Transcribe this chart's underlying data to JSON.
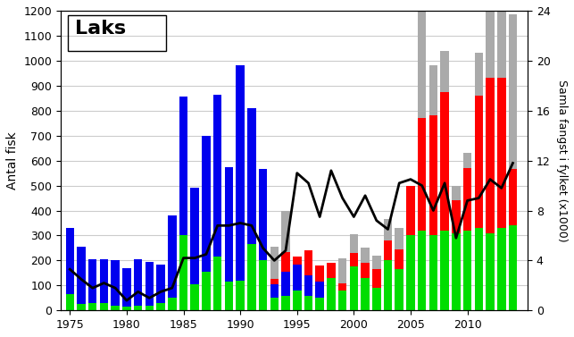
{
  "years": [
    1975,
    1976,
    1977,
    1978,
    1979,
    1980,
    1981,
    1982,
    1983,
    1984,
    1985,
    1986,
    1987,
    1988,
    1989,
    1990,
    1991,
    1992,
    1993,
    1994,
    1995,
    1996,
    1997,
    1998,
    1999,
    2000,
    2001,
    2002,
    2003,
    2004,
    2005,
    2006,
    2007,
    2008,
    2009,
    2010,
    2011,
    2012,
    2013,
    2014
  ],
  "green": [
    65,
    25,
    30,
    30,
    20,
    15,
    20,
    20,
    30,
    50,
    300,
    105,
    155,
    215,
    115,
    120,
    265,
    200,
    50,
    60,
    80,
    60,
    50,
    130,
    80,
    175,
    130,
    90,
    200,
    165,
    300,
    320,
    300,
    320,
    310,
    320,
    330,
    310,
    330,
    340
  ],
  "blue": [
    265,
    230,
    175,
    175,
    180,
    155,
    185,
    175,
    155,
    330,
    555,
    385,
    545,
    650,
    460,
    860,
    545,
    365,
    55,
    95,
    105,
    80,
    65,
    0,
    0,
    0,
    0,
    0,
    0,
    0,
    0,
    0,
    0,
    0,
    0,
    0,
    0,
    0,
    0,
    0
  ],
  "red": [
    0,
    0,
    0,
    0,
    0,
    0,
    0,
    0,
    0,
    0,
    0,
    0,
    0,
    0,
    0,
    0,
    0,
    0,
    20,
    80,
    30,
    100,
    65,
    60,
    30,
    55,
    60,
    75,
    80,
    80,
    200,
    450,
    480,
    555,
    130,
    250,
    530,
    620,
    600,
    225
  ],
  "grey": [
    0,
    0,
    0,
    0,
    0,
    0,
    0,
    0,
    0,
    0,
    0,
    0,
    0,
    0,
    0,
    0,
    0,
    0,
    130,
    165,
    0,
    0,
    0,
    0,
    100,
    75,
    60,
    55,
    85,
    85,
    0,
    430,
    200,
    165,
    60,
    60,
    170,
    290,
    310,
    620
  ],
  "line": [
    3.3,
    2.5,
    1.8,
    2.2,
    1.8,
    0.8,
    1.5,
    1.0,
    1.5,
    1.8,
    4.2,
    4.2,
    4.5,
    6.8,
    6.8,
    7.0,
    6.8,
    5.0,
    4.0,
    4.8,
    11.0,
    10.2,
    7.5,
    11.2,
    9.0,
    7.5,
    9.2,
    7.2,
    6.5,
    10.2,
    10.5,
    10.0,
    8.0,
    10.2,
    5.8,
    8.8,
    9.0,
    10.5,
    9.8,
    11.8
  ],
  "title": "Laks",
  "ylabel_left": "Antal fisk",
  "ylabel_right": "Samla fangst i fylket (x1000)",
  "ylim_left": [
    0,
    1200
  ],
  "ylim_right": [
    0,
    24
  ],
  "yticks_left": [
    0,
    100,
    200,
    300,
    400,
    500,
    600,
    700,
    800,
    900,
    1000,
    1100,
    1200
  ],
  "yticks_right": [
    0,
    4,
    8,
    12,
    16,
    20,
    24
  ],
  "color_green": "#00dd00",
  "color_blue": "#0000ee",
  "color_red": "#ff0000",
  "color_grey": "#aaaaaa",
  "color_line": "#000000",
  "bg_color": "#ffffff",
  "grid_color": "#cccccc"
}
